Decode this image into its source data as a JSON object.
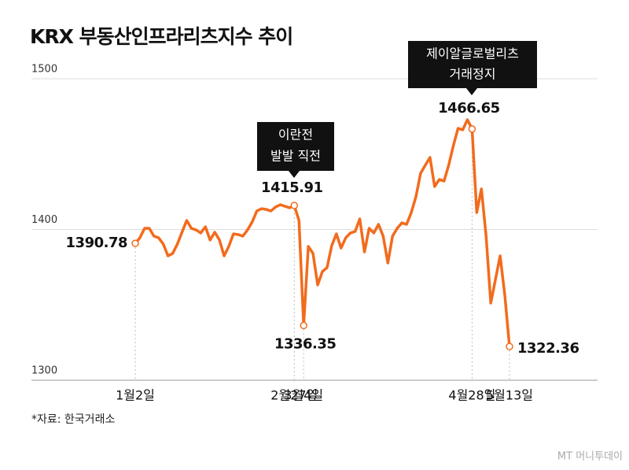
{
  "chart_data": {
    "type": "line",
    "title": "KRX 부동산인프라리츠지수 추이",
    "categories": [
      "1월2일",
      null,
      null,
      null,
      null,
      null,
      null,
      null,
      null,
      null,
      null,
      null,
      null,
      null,
      null,
      null,
      null,
      null,
      null,
      null,
      null,
      null,
      null,
      null,
      null,
      null,
      null,
      null,
      null,
      null,
      null,
      null,
      null,
      null,
      "2월27일",
      null,
      "3월4일",
      null,
      null,
      null,
      null,
      null,
      null,
      null,
      null,
      null,
      null,
      null,
      null,
      null,
      null,
      null,
      null,
      null,
      null,
      null,
      null,
      null,
      null,
      null,
      null,
      null,
      null,
      null,
      null,
      null,
      null,
      null,
      null,
      null,
      null,
      null,
      "4월28일",
      null,
      null,
      null,
      null,
      null,
      null,
      null,
      "5월13일"
    ],
    "series": [
      {
        "name": null,
        "color": "#f26b1d",
        "values": [
          1390.78,
          1394.5,
          1400.8,
          1400.8,
          1395.6,
          1394.5,
          1390.3,
          1382.5,
          1384.1,
          1390.3,
          1398.2,
          1406,
          1400.8,
          1399.7,
          1397.7,
          1401.8,
          1393,
          1398.2,
          1393,
          1382.5,
          1388.8,
          1397.1,
          1396.6,
          1395.6,
          1399.7,
          1405,
          1412.3,
          1413.8,
          1413.3,
          1412.3,
          1414.9,
          1416.4,
          1415.4,
          1414.4,
          1415.91,
          1406,
          1336.35,
          1388.8,
          1384.1,
          1363.2,
          1372.1,
          1374.7,
          1389.3,
          1397.1,
          1387.7,
          1394.5,
          1397.7,
          1398.7,
          1407,
          1385.1,
          1400.8,
          1397.7,
          1403.4,
          1395.6,
          1377.8,
          1395.6,
          1400.8,
          1404.4,
          1403.4,
          1411.2,
          1421.7,
          1437.3,
          1442.6,
          1447.8,
          1428.5,
          1433.2,
          1432.1,
          1442.6,
          1455.6,
          1467.1,
          1466.1,
          1472.8,
          1466.65,
          1411.2,
          1426.9,
          1395.6,
          1351.2,
          1366.8,
          1382.5,
          1356.4,
          1322.36
        ],
        "value_labels": [
          "1390.78",
          null,
          null,
          null,
          null,
          null,
          null,
          null,
          null,
          null,
          null,
          null,
          null,
          null,
          null,
          null,
          null,
          null,
          null,
          null,
          null,
          null,
          null,
          null,
          null,
          null,
          null,
          null,
          null,
          null,
          null,
          null,
          null,
          null,
          "1415.91",
          null,
          "1336.35",
          null,
          null,
          null,
          null,
          null,
          null,
          null,
          null,
          null,
          null,
          null,
          null,
          null,
          null,
          null,
          null,
          null,
          null,
          null,
          null,
          null,
          null,
          null,
          null,
          null,
          null,
          null,
          null,
          null,
          null,
          null,
          null,
          null,
          null,
          null,
          "1466.65",
          null,
          null,
          null,
          null,
          null,
          null,
          null,
          "1322.36"
        ]
      }
    ],
    "ylim": [
      1300,
      1500
    ],
    "yticks": [
      1300,
      1400,
      1500
    ],
    "grid": true,
    "annotations": [
      [
        "이란전",
        "발발 직전"
      ],
      [
        "제이알글로벌리츠",
        "거래정지"
      ]
    ],
    "source": "*자료: 한국거래소",
    "watermark": "MT 머니투데이"
  }
}
